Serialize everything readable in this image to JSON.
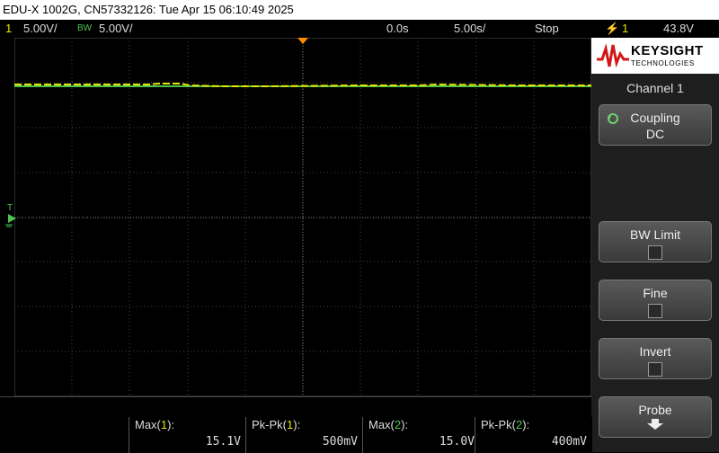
{
  "title_bar": "EDU-X 1002G, CN57332126: Tue Apr 15 06:10:49 2025",
  "status": {
    "ch_num": "1",
    "ch_scale": "5.00V/",
    "bw_label": "BW",
    "ch2_scale": "5.00V/",
    "time_pos": "0.0s",
    "time_scale": "5.00s/",
    "run_state": "Stop",
    "trig_icon": "⚡",
    "trig_src": "1",
    "trig_level": "43.8V"
  },
  "panel": {
    "brand": "KEYSIGHT",
    "brand_sub": "TECHNOLOGIES",
    "title": "Channel 1",
    "coupling_label": "Coupling",
    "coupling_value": "DC",
    "bw_limit_label": "BW Limit",
    "fine_label": "Fine",
    "invert_label": "Invert",
    "probe_label": "Probe"
  },
  "ground_marker": "T",
  "measurements": [
    {
      "name_prefix": "Max(",
      "ch": "1",
      "name_suffix": "):",
      "value": "15.1V"
    },
    {
      "name_prefix": "Pk-Pk(",
      "ch": "1",
      "name_suffix": "):",
      "value": "500mV"
    },
    {
      "name_prefix": "Max(",
      "ch": "2",
      "name_suffix": "):",
      "value": "15.0V"
    },
    {
      "name_prefix": "Pk-Pk(",
      "ch": "2",
      "name_suffix": "):",
      "value": "400mV"
    }
  ],
  "colors": {
    "ch1": "#e6e600",
    "ch2": "#4ec34e",
    "trigger": "#ff8c00"
  }
}
